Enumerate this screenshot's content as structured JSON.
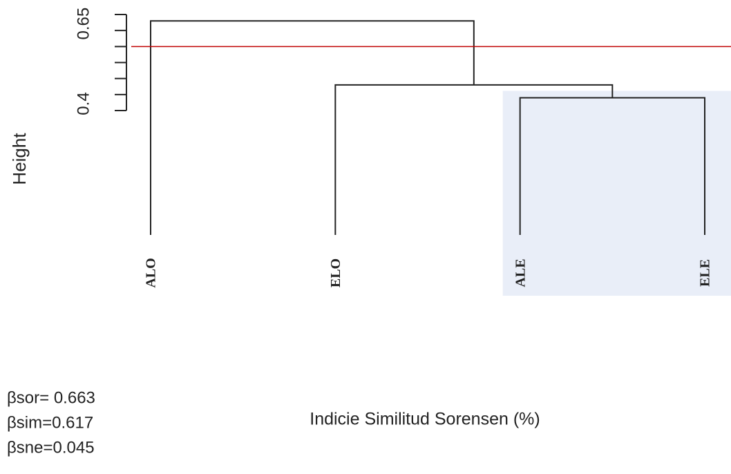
{
  "chart_data": {
    "type": "dendrogram",
    "y_label": "Height",
    "x_label": "Indicie Similitud Sorensen (%)",
    "leaves": [
      "ALO",
      "ELO",
      "ALE",
      "ELE"
    ],
    "merges": [
      [
        2,
        3
      ],
      [
        1,
        4
      ],
      [
        0,
        5
      ]
    ],
    "heights": [
      0.44,
      0.48,
      0.68
    ],
    "ylim": [
      0.4,
      0.7
    ],
    "yticks": [
      0.4,
      0.65
    ],
    "minor_yticks": [
      0.45,
      0.5,
      0.55,
      0.6,
      0.7
    ],
    "cut_height": 0.6,
    "cut_color": "#c00000",
    "highlight_node": 4,
    "highlight_color": "#e9eef8",
    "annotations": [
      "βsor= 0.663",
      "βsim=0.617",
      "βsne=0.045"
    ]
  }
}
